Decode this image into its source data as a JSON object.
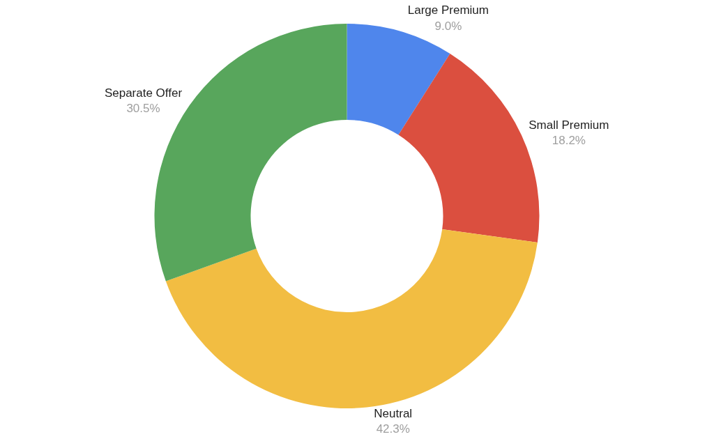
{
  "chart_data": {
    "type": "donut",
    "categories": [
      "Large Premium",
      "Small Premium",
      "Neutral",
      "Separate Offer"
    ],
    "values": [
      9.0,
      18.2,
      42.3,
      30.5
    ],
    "value_labels": [
      "9.0%",
      "18.2%",
      "42.3%",
      "30.5%"
    ],
    "colors": [
      "#4f86ec",
      "#db4f3f",
      "#f2bd42",
      "#58a65c"
    ],
    "legend": false
  }
}
